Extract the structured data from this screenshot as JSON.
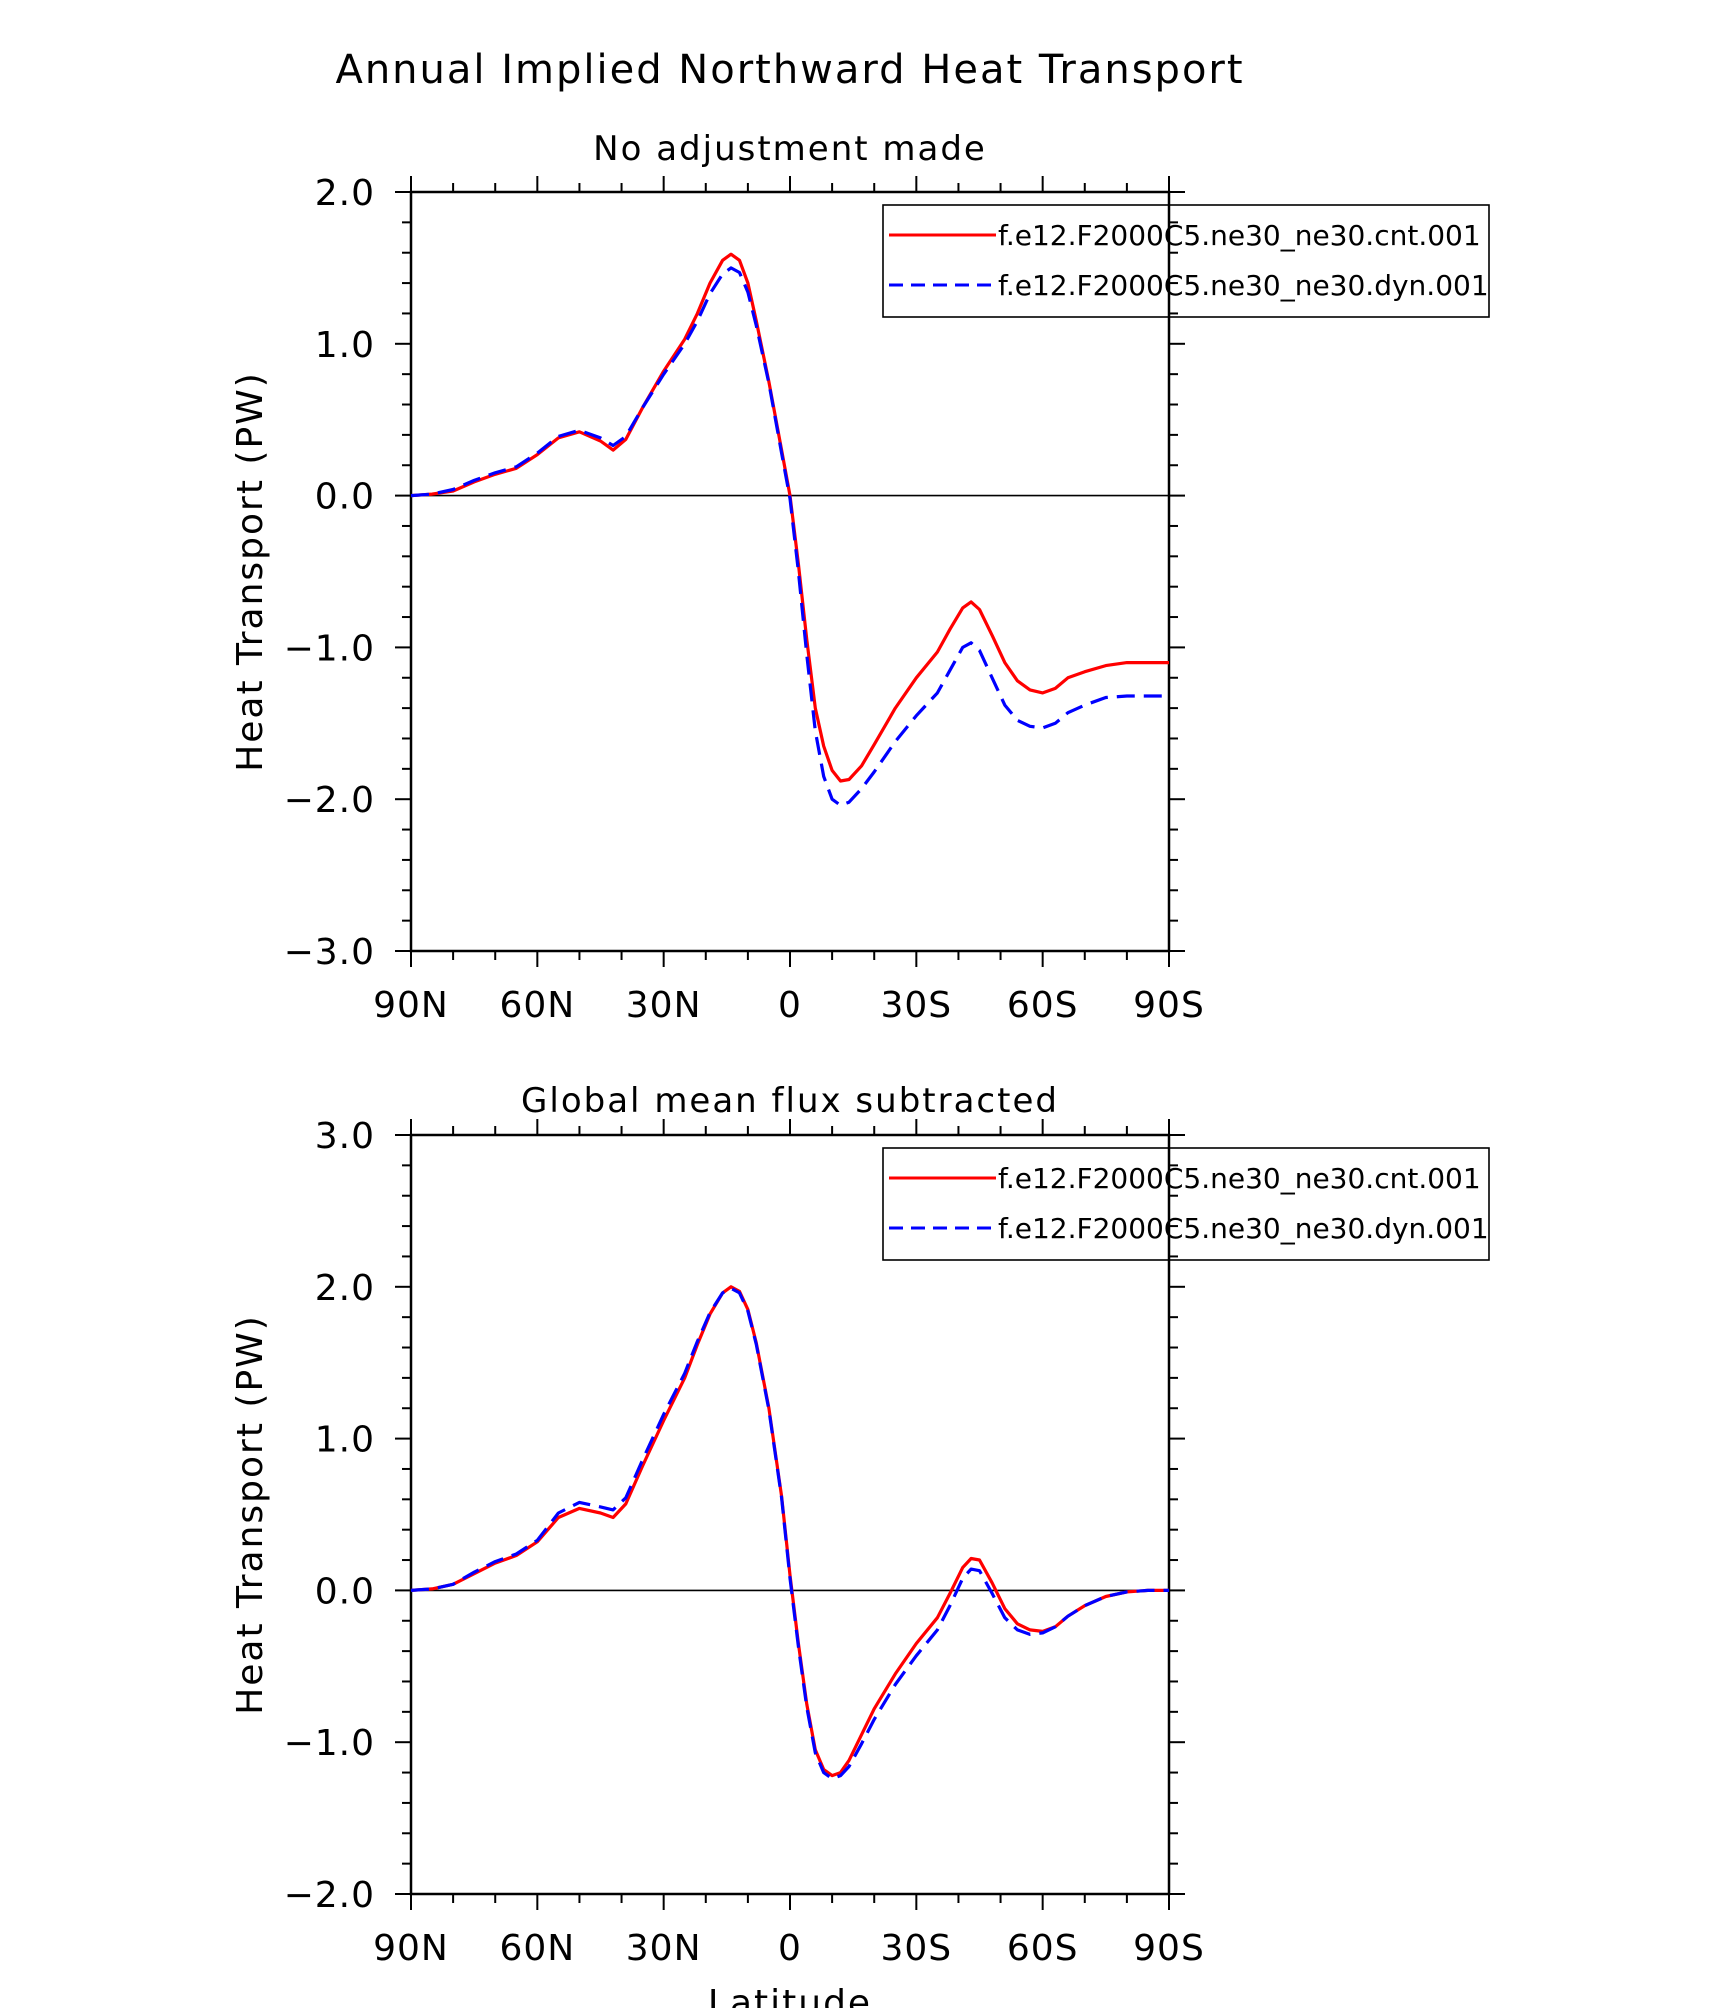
{
  "figure_title": "Annual Implied Northward Heat Transport",
  "colors": {
    "cnt": "#ff0000",
    "dyn": "#0000ff",
    "axis": "#000000"
  },
  "chart_data": [
    {
      "type": "line",
      "title": "No adjustment made",
      "xlabel": "",
      "ylabel": "Heat Transport (PW)",
      "xlim": [
        -90,
        90
      ],
      "x_direction": "90N to 90S (positive = north)",
      "ylim": [
        -3.0,
        2.0
      ],
      "yticks": [
        -3.0,
        -2.0,
        -1.0,
        0.0,
        1.0,
        2.0
      ],
      "ytick_labels": [
        "−3.0",
        "−2.0",
        "−1.0",
        "0.0",
        "1.0",
        "2.0"
      ],
      "xticks": [
        90,
        60,
        30,
        0,
        -30,
        -60,
        -90
      ],
      "xtick_labels": [
        "90N",
        "60N",
        "30N",
        "0",
        "30S",
        "60S",
        "90S"
      ],
      "zero_line": true,
      "grid": false,
      "legend": "top-right",
      "series": [
        {
          "name": "f.e12.F2000C5.ne30_ne30.cnt.001",
          "style": "solid",
          "color": "#ff0000",
          "points": [
            [
              90,
              0
            ],
            [
              85,
              0.01
            ],
            [
              80,
              0.03
            ],
            [
              75,
              0.09
            ],
            [
              70,
              0.14
            ],
            [
              65,
              0.18
            ],
            [
              60,
              0.27
            ],
            [
              55,
              0.38
            ],
            [
              50,
              0.42
            ],
            [
              45,
              0.36
            ],
            [
              42,
              0.3
            ],
            [
              39,
              0.37
            ],
            [
              35,
              0.58
            ],
            [
              30,
              0.82
            ],
            [
              25,
              1.03
            ],
            [
              22,
              1.2
            ],
            [
              19,
              1.4
            ],
            [
              16,
              1.55
            ],
            [
              14,
              1.59
            ],
            [
              12,
              1.55
            ],
            [
              10,
              1.4
            ],
            [
              8,
              1.15
            ],
            [
              5,
              0.75
            ],
            [
              2,
              0.3
            ],
            [
              0,
              0
            ],
            [
              -2,
              -0.45
            ],
            [
              -4,
              -0.95
            ],
            [
              -6,
              -1.4
            ],
            [
              -8,
              -1.65
            ],
            [
              -10,
              -1.81
            ],
            [
              -12,
              -1.88
            ],
            [
              -14,
              -1.87
            ],
            [
              -17,
              -1.78
            ],
            [
              -20,
              -1.64
            ],
            [
              -25,
              -1.4
            ],
            [
              -30,
              -1.2
            ],
            [
              -35,
              -1.03
            ],
            [
              -38,
              -0.88
            ],
            [
              -41,
              -0.74
            ],
            [
              -43,
              -0.7
            ],
            [
              -45,
              -0.75
            ],
            [
              -48,
              -0.92
            ],
            [
              -51,
              -1.1
            ],
            [
              -54,
              -1.22
            ],
            [
              -57,
              -1.28
            ],
            [
              -60,
              -1.3
            ],
            [
              -63,
              -1.27
            ],
            [
              -66,
              -1.2
            ],
            [
              -70,
              -1.16
            ],
            [
              -75,
              -1.12
            ],
            [
              -80,
              -1.1
            ],
            [
              -85,
              -1.1
            ],
            [
              -90,
              -1.1
            ]
          ]
        },
        {
          "name": "f.e12.F2000C5.ne30_ne30.dyn.001",
          "style": "dashed",
          "color": "#0000ff",
          "points": [
            [
              90,
              0
            ],
            [
              85,
              0.01
            ],
            [
              80,
              0.04
            ],
            [
              75,
              0.1
            ],
            [
              70,
              0.15
            ],
            [
              65,
              0.19
            ],
            [
              60,
              0.28
            ],
            [
              55,
              0.39
            ],
            [
              50,
              0.43
            ],
            [
              45,
              0.38
            ],
            [
              42,
              0.33
            ],
            [
              39,
              0.39
            ],
            [
              35,
              0.58
            ],
            [
              30,
              0.8
            ],
            [
              25,
              1.0
            ],
            [
              22,
              1.15
            ],
            [
              19,
              1.33
            ],
            [
              16,
              1.46
            ],
            [
              14,
              1.5
            ],
            [
              12,
              1.47
            ],
            [
              10,
              1.34
            ],
            [
              8,
              1.12
            ],
            [
              5,
              0.74
            ],
            [
              2,
              0.28
            ],
            [
              0,
              -0.02
            ],
            [
              -2,
              -0.5
            ],
            [
              -4,
              -1.05
            ],
            [
              -6,
              -1.55
            ],
            [
              -8,
              -1.85
            ],
            [
              -10,
              -2.0
            ],
            [
              -12,
              -2.04
            ],
            [
              -14,
              -2.02
            ],
            [
              -17,
              -1.93
            ],
            [
              -20,
              -1.82
            ],
            [
              -25,
              -1.62
            ],
            [
              -30,
              -1.45
            ],
            [
              -35,
              -1.3
            ],
            [
              -38,
              -1.15
            ],
            [
              -41,
              -1.0
            ],
            [
              -43,
              -0.97
            ],
            [
              -45,
              -1.02
            ],
            [
              -48,
              -1.2
            ],
            [
              -51,
              -1.38
            ],
            [
              -54,
              -1.48
            ],
            [
              -57,
              -1.52
            ],
            [
              -60,
              -1.53
            ],
            [
              -63,
              -1.5
            ],
            [
              -66,
              -1.43
            ],
            [
              -70,
              -1.38
            ],
            [
              -75,
              -1.33
            ],
            [
              -80,
              -1.32
            ],
            [
              -85,
              -1.32
            ],
            [
              -90,
              -1.32
            ]
          ]
        }
      ]
    },
    {
      "type": "line",
      "title": "Global mean flux subtracted",
      "xlabel": "Latitude",
      "ylabel": "Heat Transport (PW)",
      "xlim": [
        -90,
        90
      ],
      "x_direction": "90N to 90S (positive = north)",
      "ylim": [
        -2.0,
        3.0
      ],
      "yticks": [
        -2.0,
        -1.0,
        0.0,
        1.0,
        2.0,
        3.0
      ],
      "ytick_labels": [
        "−2.0",
        "−1.0",
        "0.0",
        "1.0",
        "2.0",
        "3.0"
      ],
      "xticks": [
        90,
        60,
        30,
        0,
        -30,
        -60,
        -90
      ],
      "xtick_labels": [
        "90N",
        "60N",
        "30N",
        "0",
        "30S",
        "60S",
        "90S"
      ],
      "zero_line": true,
      "grid": false,
      "legend": "top-right",
      "series": [
        {
          "name": "f.e12.F2000C5.ne30_ne30.cnt.001",
          "style": "solid",
          "color": "#ff0000",
          "points": [
            [
              90,
              0
            ],
            [
              85,
              0.01
            ],
            [
              80,
              0.04
            ],
            [
              75,
              0.11
            ],
            [
              70,
              0.18
            ],
            [
              65,
              0.23
            ],
            [
              60,
              0.32
            ],
            [
              55,
              0.48
            ],
            [
              50,
              0.54
            ],
            [
              45,
              0.51
            ],
            [
              42,
              0.48
            ],
            [
              39,
              0.57
            ],
            [
              35,
              0.82
            ],
            [
              30,
              1.12
            ],
            [
              25,
              1.4
            ],
            [
              22,
              1.62
            ],
            [
              19,
              1.82
            ],
            [
              16,
              1.96
            ],
            [
              14,
              2.0
            ],
            [
              12,
              1.97
            ],
            [
              10,
              1.85
            ],
            [
              8,
              1.63
            ],
            [
              5,
              1.2
            ],
            [
              2,
              0.62
            ],
            [
              0,
              0.1
            ],
            [
              -2,
              -0.35
            ],
            [
              -4,
              -0.75
            ],
            [
              -6,
              -1.05
            ],
            [
              -8,
              -1.18
            ],
            [
              -10,
              -1.22
            ],
            [
              -12,
              -1.2
            ],
            [
              -14,
              -1.12
            ],
            [
              -17,
              -0.95
            ],
            [
              -20,
              -0.78
            ],
            [
              -25,
              -0.55
            ],
            [
              -30,
              -0.35
            ],
            [
              -35,
              -0.18
            ],
            [
              -38,
              -0.02
            ],
            [
              -41,
              0.15
            ],
            [
              -43,
              0.21
            ],
            [
              -45,
              0.2
            ],
            [
              -48,
              0.05
            ],
            [
              -51,
              -0.12
            ],
            [
              -54,
              -0.22
            ],
            [
              -57,
              -0.26
            ],
            [
              -60,
              -0.27
            ],
            [
              -63,
              -0.24
            ],
            [
              -66,
              -0.17
            ],
            [
              -70,
              -0.1
            ],
            [
              -75,
              -0.04
            ],
            [
              -80,
              -0.01
            ],
            [
              -85,
              0
            ],
            [
              -90,
              0
            ]
          ]
        },
        {
          "name": "f.e12.F2000C5.ne30_ne30.dyn.001",
          "style": "dashed",
          "color": "#0000ff",
          "points": [
            [
              90,
              0
            ],
            [
              85,
              0.01
            ],
            [
              80,
              0.04
            ],
            [
              75,
              0.12
            ],
            [
              70,
              0.19
            ],
            [
              65,
              0.24
            ],
            [
              60,
              0.33
            ],
            [
              55,
              0.51
            ],
            [
              50,
              0.58
            ],
            [
              45,
              0.55
            ],
            [
              42,
              0.53
            ],
            [
              39,
              0.61
            ],
            [
              35,
              0.86
            ],
            [
              30,
              1.16
            ],
            [
              25,
              1.43
            ],
            [
              22,
              1.64
            ],
            [
              19,
              1.83
            ],
            [
              16,
              1.96
            ],
            [
              14,
              1.99
            ],
            [
              12,
              1.96
            ],
            [
              10,
              1.84
            ],
            [
              8,
              1.62
            ],
            [
              5,
              1.19
            ],
            [
              2,
              0.61
            ],
            [
              0,
              0.08
            ],
            [
              -2,
              -0.37
            ],
            [
              -4,
              -0.77
            ],
            [
              -6,
              -1.07
            ],
            [
              -8,
              -1.2
            ],
            [
              -10,
              -1.24
            ],
            [
              -12,
              -1.22
            ],
            [
              -14,
              -1.16
            ],
            [
              -17,
              -1.01
            ],
            [
              -20,
              -0.85
            ],
            [
              -25,
              -0.62
            ],
            [
              -30,
              -0.43
            ],
            [
              -35,
              -0.26
            ],
            [
              -38,
              -0.1
            ],
            [
              -41,
              0.08
            ],
            [
              -43,
              0.14
            ],
            [
              -45,
              0.13
            ],
            [
              -48,
              -0.02
            ],
            [
              -51,
              -0.18
            ],
            [
              -54,
              -0.26
            ],
            [
              -57,
              -0.29
            ],
            [
              -60,
              -0.28
            ],
            [
              -63,
              -0.24
            ],
            [
              -66,
              -0.17
            ],
            [
              -70,
              -0.1
            ],
            [
              -75,
              -0.04
            ],
            [
              -80,
              -0.01
            ],
            [
              -85,
              0
            ],
            [
              -90,
              0
            ]
          ]
        }
      ]
    }
  ]
}
